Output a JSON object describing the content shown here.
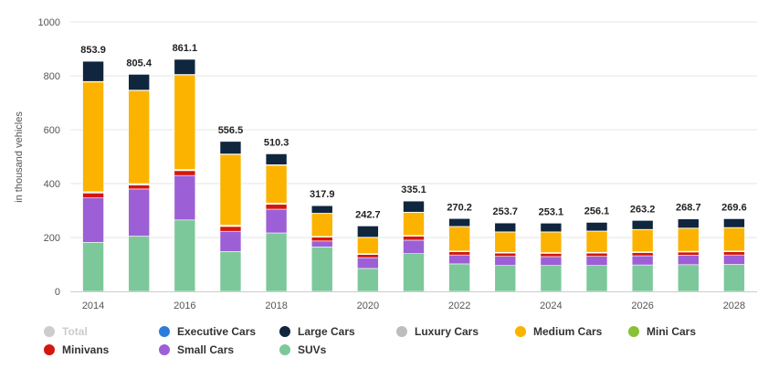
{
  "chart_data": {
    "type": "bar",
    "stacked": true,
    "title": "",
    "xlabel": "",
    "ylabel": "in thousand vehicles",
    "ylim": [
      0,
      1000
    ],
    "yticks": [
      0,
      200,
      400,
      600,
      800,
      1000
    ],
    "xtick_labels": [
      "2014",
      "2016",
      "2018",
      "2020",
      "2022",
      "2024",
      "2026",
      "2028"
    ],
    "categories": [
      "2014",
      "2015",
      "2016",
      "2017",
      "2018",
      "2019",
      "2020",
      "2021",
      "2022",
      "2023",
      "2024",
      "2025",
      "2026",
      "2027",
      "2028"
    ],
    "totals": [
      853.9,
      805.4,
      861.1,
      556.5,
      510.3,
      317.9,
      242.7,
      335.1,
      270.2,
      253.7,
      253.1,
      256.1,
      263.2,
      268.7,
      269.6
    ],
    "total_labels": [
      "853.9",
      "805.4",
      "861.1",
      "556.5",
      "510.3",
      "317.9",
      "242.7",
      "335.1",
      "270.2",
      "253.7",
      "253.1",
      "256.1",
      "263.2",
      "268.7",
      "269.6"
    ],
    "series": [
      {
        "name": "SUVs",
        "color": "#7cc89b",
        "values": [
          182,
          205,
          265,
          148,
          217,
          165,
          85,
          140,
          102,
          96,
          96,
          96,
          98,
          99,
          100
        ]
      },
      {
        "name": "Small Cars",
        "color": "#9d5fd6",
        "values": [
          165,
          175,
          165,
          75,
          88,
          22,
          40,
          50,
          33,
          34,
          33,
          34,
          34,
          35,
          35
        ]
      },
      {
        "name": "Minivans",
        "color": "#d4170e",
        "values": [
          18,
          15,
          18,
          18,
          18,
          14,
          12,
          15,
          12,
          12,
          12,
          12,
          12,
          12,
          12
        ]
      },
      {
        "name": "Mini Cars",
        "color": "#86c232",
        "values": [
          2,
          2,
          2,
          2,
          2,
          1,
          1,
          1,
          1,
          1,
          1,
          1,
          1,
          1,
          1
        ]
      },
      {
        "name": "Luxury Cars",
        "color": "#bdbdbd",
        "values": [
          3,
          3,
          3,
          3,
          3,
          2,
          2,
          2,
          2,
          2,
          2,
          2,
          2,
          2,
          2
        ]
      },
      {
        "name": "Medium Cars",
        "color": "#fbb300",
        "values": [
          407,
          345,
          350,
          262,
          140,
          85,
          60,
          85,
          90,
          75,
          76,
          78,
          82,
          85,
          86
        ]
      },
      {
        "name": "Executive Cars",
        "color": "#2b7ddb",
        "values": [
          2,
          2,
          2,
          2,
          2,
          1,
          1,
          1,
          1,
          1,
          1,
          1,
          1,
          1,
          1
        ]
      },
      {
        "name": "Large Cars",
        "color": "#10263e",
        "values": [
          74.9,
          58.4,
          56.1,
          46.5,
          40.3,
          27.9,
          41.7,
          41.1,
          29.2,
          32.7,
          32.1,
          32.1,
          33.2,
          33.7,
          32.6
        ]
      }
    ]
  },
  "legend": {
    "items": [
      {
        "label": "Total",
        "color": "#cccccc",
        "hidden": true
      },
      {
        "label": "Executive Cars",
        "color": "#2b7ddb",
        "hidden": false
      },
      {
        "label": "Large Cars",
        "color": "#10263e",
        "hidden": false
      },
      {
        "label": "Luxury Cars",
        "color": "#bdbdbd",
        "hidden": false
      },
      {
        "label": "Medium Cars",
        "color": "#fbb300",
        "hidden": false
      },
      {
        "label": "Mini Cars",
        "color": "#86c232",
        "hidden": false
      },
      {
        "label": "Minivans",
        "color": "#d4170e",
        "hidden": false
      },
      {
        "label": "Small Cars",
        "color": "#9d5fd6",
        "hidden": false
      },
      {
        "label": "SUVs",
        "color": "#7cc89b",
        "hidden": false
      }
    ]
  }
}
